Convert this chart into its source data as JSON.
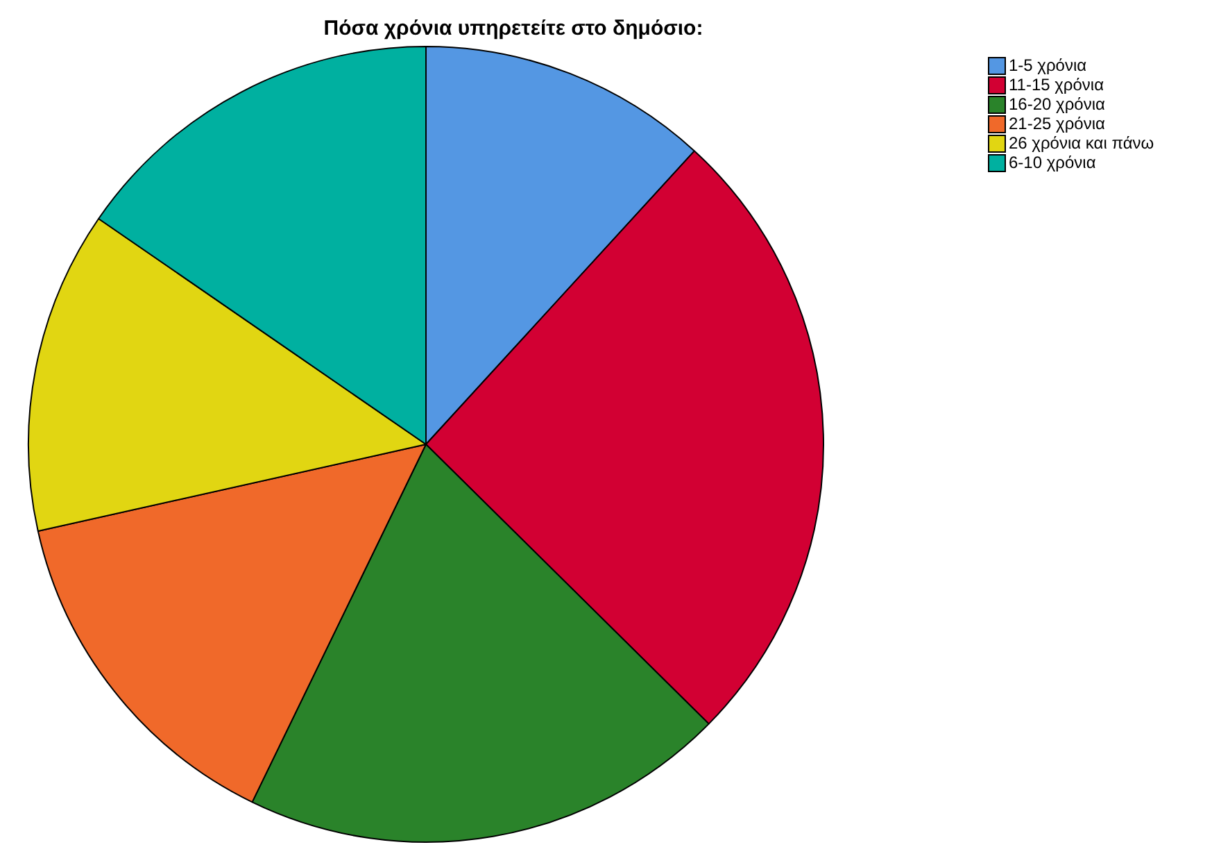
{
  "chart_data": {
    "type": "pie",
    "title": "Πόσα χρόνια υπηρετείτε στο δημόσιο:",
    "categories": [
      "1-5 χρόνια",
      "11-15 χρόνια",
      "16-20 χρόνια",
      "21-25 χρόνια",
      "26 χρόνια και πάνω",
      "6-10 χρόνια"
    ],
    "values": [
      11.8,
      25.6,
      19.8,
      14.3,
      13.1,
      15.4
    ],
    "colors": [
      "#5497e3",
      "#d20033",
      "#2a832a",
      "#f0692a",
      "#e1d612",
      "#00b0a0"
    ],
    "legend": "top right"
  }
}
